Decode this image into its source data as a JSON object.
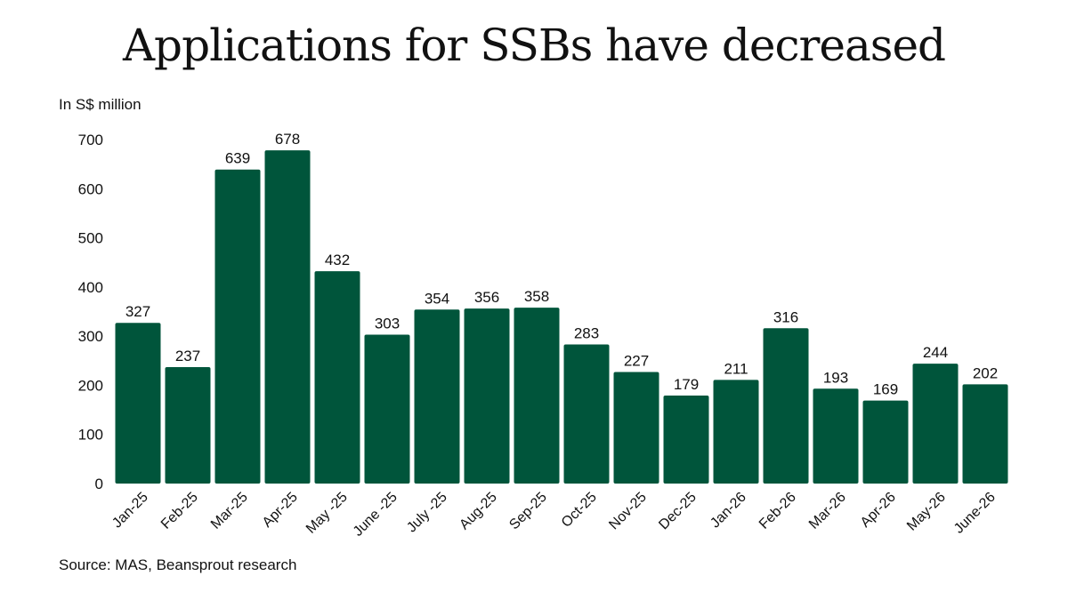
{
  "title": "Applications for SSBs have decreased",
  "unit_label": "In S$ million",
  "source": "Source: MAS, Beansprout research",
  "colors": {
    "bar": "#00553b",
    "text": "#111111",
    "background": "#ffffff"
  },
  "chart_data": {
    "type": "bar",
    "title": "Applications for SSBs have decreased",
    "ylabel": "In S$ million",
    "xlabel": "",
    "ylim": [
      0,
      700
    ],
    "yticks": [
      0,
      100,
      200,
      300,
      400,
      500,
      600,
      700
    ],
    "grid": false,
    "categories": [
      "Jan-25",
      "Feb-25",
      "Mar-25",
      "Apr-25",
      "May -25",
      "June -25",
      "July -25",
      "Aug-25",
      "Sep-25",
      "Oct-25",
      "Nov-25",
      "Dec-25",
      "Jan-26",
      "Feb-26",
      "Mar-26",
      "Apr-26",
      "May-26",
      "June-26"
    ],
    "values": [
      327,
      237,
      639,
      678,
      432,
      303,
      354,
      356,
      358,
      283,
      227,
      179,
      211,
      316,
      193,
      169,
      244,
      202
    ]
  }
}
